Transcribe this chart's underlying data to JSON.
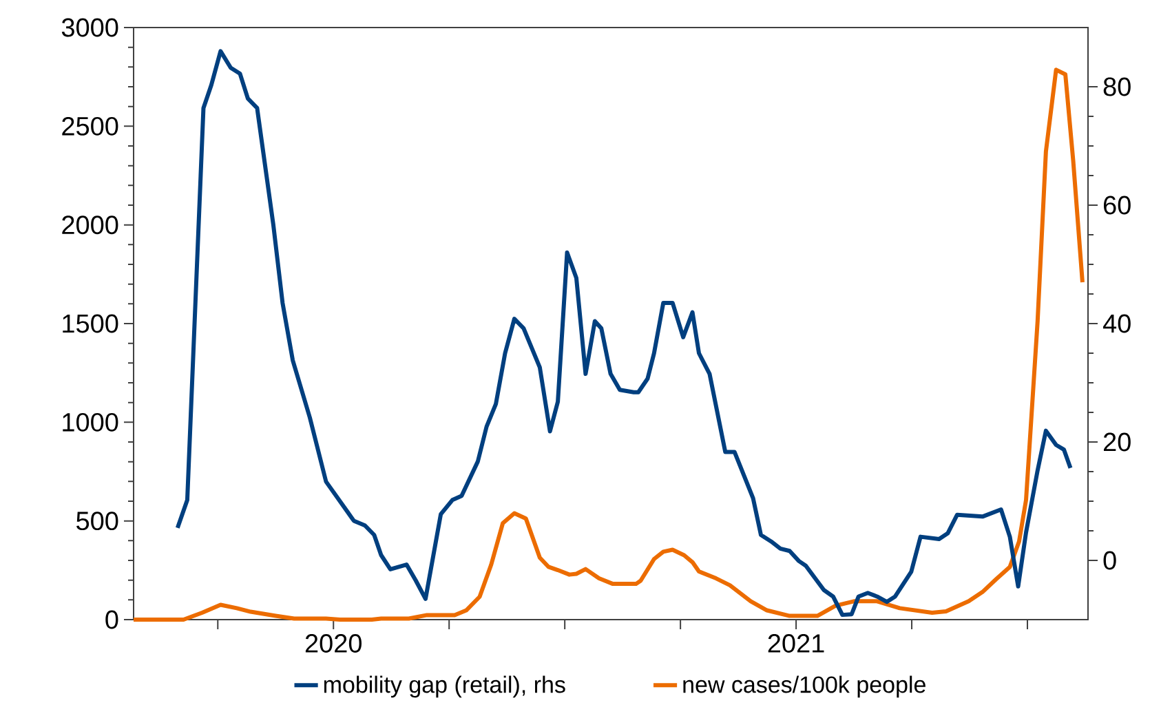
{
  "chart_data": {
    "type": "line",
    "legend": "bottom",
    "xlim": [
      2019.568,
      2021.631
    ],
    "xticks": [
      {
        "value": 2019.75,
        "label": null
      },
      2020,
      {
        "value": 2020.25,
        "label": null
      },
      {
        "value": 2020.5,
        "label": null
      },
      {
        "value": 2020.75,
        "label": null
      },
      2021,
      {
        "value": 2021.25,
        "label": null
      },
      {
        "value": 2021.5,
        "label": null
      }
    ],
    "ylim": [
      0,
      3000
    ],
    "yticks": [
      0,
      500,
      1000,
      1500,
      2000,
      2500,
      3000
    ],
    "y2lim": [
      -10,
      90
    ],
    "y2ticks": [
      0,
      20,
      40,
      60,
      80
    ],
    "series": [
      {
        "name": "mobility gap (retail), rhs",
        "color": "#003f7f",
        "axis": "y2",
        "x": [
          2019.663,
          2019.684,
          2019.719,
          2019.736,
          2019.756,
          2019.778,
          2019.798,
          2019.815,
          2019.835,
          2019.87,
          2019.89,
          2019.912,
          2019.949,
          2019.984,
          2020.044,
          2020.068,
          2020.088,
          2020.103,
          2020.123,
          2020.158,
          2020.178,
          2020.199,
          2020.232,
          2020.257,
          2020.277,
          2020.312,
          2020.331,
          2020.351,
          2020.371,
          2020.391,
          2020.411,
          2020.446,
          2020.468,
          2020.485,
          2020.505,
          2020.525,
          2020.545,
          2020.565,
          2020.579,
          2020.599,
          2020.619,
          2020.649,
          2020.659,
          2020.679,
          2020.693,
          2020.713,
          2020.733,
          2020.756,
          2020.776,
          2020.79,
          2020.813,
          2020.847,
          2020.867,
          2020.907,
          2020.924,
          2020.946,
          2020.966,
          2020.986,
          2021.006,
          2021.021,
          2021.06,
          2021.08,
          2021.1,
          2021.12,
          2021.135,
          2021.155,
          2021.175,
          2021.196,
          2021.214,
          2021.249,
          2021.269,
          2021.309,
          2021.328,
          2021.348,
          2021.403,
          2021.443,
          2021.462,
          2021.48,
          2021.497,
          2021.522,
          2021.54,
          2021.562,
          2021.579,
          2021.593
        ],
        "values": [
          5.5,
          10.2,
          76.4,
          80.3,
          86.0,
          83.2,
          82.2,
          78.0,
          76.4,
          56.7,
          43.5,
          33.8,
          24.1,
          13.3,
          6.7,
          5.9,
          4.3,
          0.9,
          -1.5,
          -0.7,
          -3.4,
          -6.5,
          7.8,
          10.2,
          10.9,
          16.7,
          22.6,
          26.4,
          35.0,
          40.8,
          39.2,
          32.6,
          21.8,
          26.8,
          52.0,
          47.7,
          31.5,
          40.4,
          39.2,
          31.5,
          28.8,
          28.4,
          28.4,
          30.7,
          35.0,
          43.5,
          43.5,
          37.7,
          41.9,
          35.0,
          31.5,
          18.3,
          18.3,
          10.5,
          4.3,
          3.2,
          2.0,
          1.6,
          -0.1,
          -0.9,
          -5.0,
          -6.1,
          -9.2,
          -9.1,
          -6.1,
          -5.5,
          -6.1,
          -7.0,
          -6.1,
          -1.9,
          4.0,
          3.6,
          4.6,
          7.7,
          7.4,
          8.6,
          4.0,
          -4.4,
          4.7,
          15.2,
          21.9,
          19.5,
          18.7,
          15.6
        ]
      },
      {
        "name": "new cases/100k people",
        "color": "#ec6c00",
        "x": [
          2019.568,
          2019.676,
          2019.716,
          2019.756,
          2019.791,
          2019.821,
          2019.875,
          2019.915,
          2019.984,
          2020.014,
          2020.083,
          2020.103,
          2020.163,
          2020.202,
          2020.262,
          2020.287,
          2020.316,
          2020.341,
          2020.366,
          2020.391,
          2020.416,
          2020.446,
          2020.465,
          2020.485,
          2020.51,
          2020.525,
          2020.545,
          2020.574,
          2020.604,
          2020.654,
          2020.664,
          2020.693,
          2020.713,
          2020.733,
          2020.758,
          2020.776,
          2020.79,
          2020.827,
          2020.857,
          2020.902,
          2020.937,
          2020.986,
          2021.046,
          2021.085,
          2021.125,
          2021.175,
          2021.224,
          2021.294,
          2021.324,
          2021.373,
          2021.403,
          2021.432,
          2021.462,
          2021.482,
          2021.497,
          2021.522,
          2021.54,
          2021.562,
          2021.582,
          2021.599,
          2021.619
        ],
        "values": [
          0,
          0,
          35,
          75,
          58,
          40,
          19,
          5,
          5,
          0,
          0,
          5,
          5,
          23,
          23,
          47,
          116,
          279,
          488,
          539,
          512,
          314,
          267,
          251,
          228,
          232,
          256,
          209,
          181,
          181,
          197,
          307,
          344,
          354,
          326,
          291,
          244,
          209,
          174,
          93,
          47,
          19,
          19,
          70,
          93,
          93,
          58,
          35,
          42,
          93,
          140,
          204,
          267,
          396,
          605,
          1512,
          2372,
          2786,
          2763,
          2325,
          1709
        ]
      }
    ]
  }
}
